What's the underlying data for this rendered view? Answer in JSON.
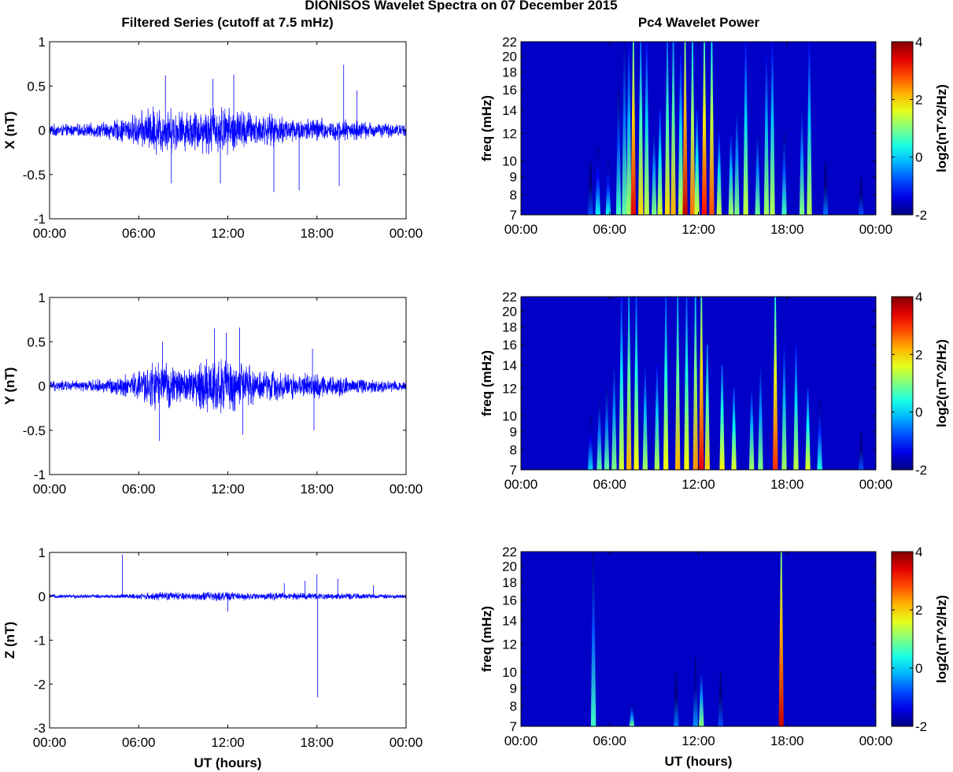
{
  "figure": {
    "title": "DIONISOS Wavelet Spectra on 07 December 2015",
    "left_column_title": "Filtered Series (cutoff at 7.5 mHz)",
    "right_column_title": "Pc4 Wavelet Power",
    "x_axis_label": "UT (hours)"
  },
  "chart_data": [
    {
      "type": "line",
      "name": "series-x",
      "title": "",
      "xlabel": "",
      "ylabel": "X (nT)",
      "color": "#0000ff",
      "xlim_hours": [
        0,
        24
      ],
      "ylim": [
        -1,
        1
      ],
      "x_ticks": [
        "00:00",
        "06:00",
        "12:00",
        "18:00",
        "00:00"
      ],
      "y_ticks": [
        "-1",
        "-0.5",
        "0",
        "0.5",
        "1"
      ],
      "envelope_hours": [
        0,
        2,
        3,
        4,
        5,
        6,
        7,
        8,
        9,
        10,
        11,
        12,
        13,
        14,
        15,
        16,
        17,
        18,
        19,
        20,
        21,
        22,
        23,
        24
      ],
      "envelope_amplitude_nT": [
        0.08,
        0.08,
        0.09,
        0.12,
        0.16,
        0.22,
        0.32,
        0.3,
        0.25,
        0.28,
        0.32,
        0.3,
        0.27,
        0.22,
        0.2,
        0.18,
        0.15,
        0.17,
        0.13,
        0.14,
        0.12,
        0.1,
        0.09,
        0.08
      ],
      "spikes": [
        {
          "hour": 7.8,
          "value": 0.62
        },
        {
          "hour": 8.2,
          "value": -0.6
        },
        {
          "hour": 11.0,
          "value": 0.58
        },
        {
          "hour": 11.5,
          "value": -0.6
        },
        {
          "hour": 12.4,
          "value": 0.63
        },
        {
          "hour": 15.1,
          "value": -0.7
        },
        {
          "hour": 16.8,
          "value": -0.68
        },
        {
          "hour": 19.5,
          "value": -0.63
        },
        {
          "hour": 19.8,
          "value": 0.74
        },
        {
          "hour": 20.7,
          "value": 0.45
        }
      ]
    },
    {
      "type": "line",
      "name": "series-y",
      "title": "",
      "xlabel": "",
      "ylabel": "Y (nT)",
      "color": "#0000ff",
      "xlim_hours": [
        0,
        24
      ],
      "ylim": [
        -1,
        1
      ],
      "x_ticks": [
        "00:00",
        "06:00",
        "12:00",
        "18:00",
        "00:00"
      ],
      "y_ticks": [
        "-1",
        "-0.5",
        "0",
        "0.5",
        "1"
      ],
      "envelope_hours": [
        0,
        2,
        3,
        4,
        5,
        6,
        7,
        8,
        9,
        10,
        11,
        12,
        13,
        14,
        15,
        16,
        17,
        18,
        19,
        20,
        21,
        22,
        23,
        24
      ],
      "envelope_amplitude_nT": [
        0.07,
        0.07,
        0.08,
        0.1,
        0.14,
        0.2,
        0.32,
        0.28,
        0.22,
        0.3,
        0.4,
        0.36,
        0.3,
        0.22,
        0.2,
        0.18,
        0.16,
        0.18,
        0.14,
        0.12,
        0.1,
        0.09,
        0.08,
        0.07
      ],
      "spikes": [
        {
          "hour": 7.4,
          "value": -0.62
        },
        {
          "hour": 7.6,
          "value": 0.5
        },
        {
          "hour": 11.1,
          "value": 0.65
        },
        {
          "hour": 11.9,
          "value": 0.6
        },
        {
          "hour": 12.8,
          "value": 0.66
        },
        {
          "hour": 13.0,
          "value": -0.55
        },
        {
          "hour": 17.7,
          "value": 0.42
        },
        {
          "hour": 17.8,
          "value": -0.5
        }
      ]
    },
    {
      "type": "line",
      "name": "series-z",
      "title": "",
      "xlabel": "UT (hours)",
      "ylabel": "Z (nT)",
      "color": "#0000ff",
      "xlim_hours": [
        0,
        24
      ],
      "ylim": [
        -3,
        1
      ],
      "x_ticks": [
        "00:00",
        "06:00",
        "12:00",
        "18:00",
        "00:00"
      ],
      "y_ticks": [
        "-3",
        "-2",
        "-1",
        "0",
        "1"
      ],
      "envelope_hours": [
        0,
        3,
        5,
        6,
        7,
        8,
        9,
        10,
        11,
        12,
        13,
        14,
        15,
        16,
        17,
        18,
        19,
        20,
        21,
        22,
        24
      ],
      "envelope_amplitude_nT": [
        0.05,
        0.05,
        0.06,
        0.08,
        0.1,
        0.12,
        0.1,
        0.11,
        0.13,
        0.12,
        0.1,
        0.09,
        0.1,
        0.09,
        0.1,
        0.09,
        0.08,
        0.08,
        0.07,
        0.06,
        0.05
      ],
      "spikes": [
        {
          "hour": 4.9,
          "value": 0.95
        },
        {
          "hour": 12.0,
          "value": -0.35
        },
        {
          "hour": 15.8,
          "value": 0.3
        },
        {
          "hour": 17.2,
          "value": 0.35
        },
        {
          "hour": 18.0,
          "value": 0.5
        },
        {
          "hour": 18.05,
          "value": -2.3
        },
        {
          "hour": 19.4,
          "value": 0.4
        },
        {
          "hour": 21.8,
          "value": 0.25
        }
      ]
    },
    {
      "type": "heatmap",
      "name": "wavelet-x",
      "title": "",
      "xlabel": "",
      "ylabel": "freq (mHz)",
      "colorbar_label": "log2(nT^2/Hz)",
      "xlim_hours": [
        0,
        24
      ],
      "ylim_mHz": [
        7,
        22
      ],
      "x_ticks": [
        "00:00",
        "06:00",
        "12:00",
        "18:00",
        "00:00"
      ],
      "y_ticks": [
        "7",
        "8",
        "9",
        "10",
        "12",
        "14",
        "16",
        "18",
        "20",
        "22"
      ],
      "clim": [
        -2,
        4
      ],
      "colorbar_ticks": [
        "-2",
        "0",
        "2",
        "4"
      ],
      "bursts": [
        {
          "hour": 4.7,
          "power": -0.8,
          "top_mHz": 10
        },
        {
          "hour": 5.2,
          "power": 0.2,
          "top_mHz": 11
        },
        {
          "hour": 5.9,
          "power": 0.3,
          "top_mHz": 10
        },
        {
          "hour": 6.6,
          "power": 0.6,
          "top_mHz": 16
        },
        {
          "hour": 7.0,
          "power": 0.8,
          "top_mHz": 22
        },
        {
          "hour": 7.3,
          "power": 1.2,
          "top_mHz": 22
        },
        {
          "hour": 7.6,
          "power": 3.4,
          "top_mHz": 22
        },
        {
          "hour": 8.1,
          "power": 2.0,
          "top_mHz": 22
        },
        {
          "hour": 8.5,
          "power": 1.4,
          "top_mHz": 22
        },
        {
          "hour": 9.0,
          "power": 1.0,
          "top_mHz": 12
        },
        {
          "hour": 9.4,
          "power": 1.5,
          "top_mHz": 14
        },
        {
          "hour": 9.9,
          "power": 2.0,
          "top_mHz": 22
        },
        {
          "hour": 10.3,
          "power": 2.2,
          "top_mHz": 22
        },
        {
          "hour": 10.8,
          "power": 1.4,
          "top_mHz": 20
        },
        {
          "hour": 11.1,
          "power": 3.6,
          "top_mHz": 22
        },
        {
          "hour": 11.6,
          "power": 2.6,
          "top_mHz": 22
        },
        {
          "hour": 11.9,
          "power": 1.5,
          "top_mHz": 14
        },
        {
          "hour": 12.4,
          "power": 3.2,
          "top_mHz": 22
        },
        {
          "hour": 12.9,
          "power": 2.8,
          "top_mHz": 22
        },
        {
          "hour": 13.4,
          "power": 1.4,
          "top_mHz": 12
        },
        {
          "hour": 14.2,
          "power": 1.2,
          "top_mHz": 12
        },
        {
          "hour": 14.6,
          "power": 1.0,
          "top_mHz": 14
        },
        {
          "hour": 15.2,
          "power": 1.4,
          "top_mHz": 22
        },
        {
          "hour": 16.0,
          "power": 0.9,
          "top_mHz": 12
        },
        {
          "hour": 16.6,
          "power": 1.2,
          "top_mHz": 20
        },
        {
          "hour": 17.0,
          "power": 1.3,
          "top_mHz": 22
        },
        {
          "hour": 17.8,
          "power": 0.6,
          "top_mHz": 12
        },
        {
          "hour": 19.0,
          "power": 1.0,
          "top_mHz": 14
        },
        {
          "hour": 19.5,
          "power": 1.3,
          "top_mHz": 22
        },
        {
          "hour": 20.6,
          "power": -0.6,
          "top_mHz": 10
        },
        {
          "hour": 23.0,
          "power": -0.8,
          "top_mHz": 9
        }
      ]
    },
    {
      "type": "heatmap",
      "name": "wavelet-y",
      "title": "",
      "xlabel": "",
      "ylabel": "freq (mHz)",
      "colorbar_label": "log2(nT^2/Hz)",
      "xlim_hours": [
        0,
        24
      ],
      "ylim_mHz": [
        7,
        22
      ],
      "x_ticks": [
        "00:00",
        "06:00",
        "12:00",
        "18:00",
        "00:00"
      ],
      "y_ticks": [
        "7",
        "8",
        "9",
        "10",
        "12",
        "14",
        "16",
        "18",
        "20",
        "22"
      ],
      "clim": [
        -2,
        4
      ],
      "colorbar_ticks": [
        "-2",
        "0",
        "2",
        "4"
      ],
      "bursts": [
        {
          "hour": 4.7,
          "power": 0.0,
          "top_mHz": 10
        },
        {
          "hour": 5.3,
          "power": 0.8,
          "top_mHz": 11
        },
        {
          "hour": 5.8,
          "power": 0.8,
          "top_mHz": 12
        },
        {
          "hour": 6.3,
          "power": 1.0,
          "top_mHz": 14
        },
        {
          "hour": 6.8,
          "power": 1.5,
          "top_mHz": 22
        },
        {
          "hour": 7.3,
          "power": 2.2,
          "top_mHz": 22
        },
        {
          "hour": 7.8,
          "power": 1.8,
          "top_mHz": 22
        },
        {
          "hour": 8.4,
          "power": 1.2,
          "top_mHz": 14
        },
        {
          "hour": 9.2,
          "power": 1.3,
          "top_mHz": 14
        },
        {
          "hour": 9.8,
          "power": 1.8,
          "top_mHz": 22
        },
        {
          "hour": 10.6,
          "power": 2.2,
          "top_mHz": 22
        },
        {
          "hour": 11.2,
          "power": 1.8,
          "top_mHz": 22
        },
        {
          "hour": 11.8,
          "power": 2.4,
          "top_mHz": 22
        },
        {
          "hour": 12.2,
          "power": 3.4,
          "top_mHz": 22
        },
        {
          "hour": 12.6,
          "power": 2.0,
          "top_mHz": 16
        },
        {
          "hour": 13.6,
          "power": 1.8,
          "top_mHz": 14
        },
        {
          "hour": 14.4,
          "power": 1.6,
          "top_mHz": 12
        },
        {
          "hour": 15.6,
          "power": 1.2,
          "top_mHz": 12
        },
        {
          "hour": 16.2,
          "power": 1.0,
          "top_mHz": 14
        },
        {
          "hour": 17.2,
          "power": 3.0,
          "top_mHz": 22
        },
        {
          "hour": 17.8,
          "power": 1.2,
          "top_mHz": 16
        },
        {
          "hour": 18.6,
          "power": 1.4,
          "top_mHz": 16
        },
        {
          "hour": 19.4,
          "power": 1.6,
          "top_mHz": 12
        },
        {
          "hour": 20.2,
          "power": 0.4,
          "top_mHz": 11
        },
        {
          "hour": 23.0,
          "power": -0.8,
          "top_mHz": 9
        }
      ]
    },
    {
      "type": "heatmap",
      "name": "wavelet-z",
      "title": "",
      "xlabel": "UT (hours)",
      "ylabel": "freq (mHz)",
      "colorbar_label": "log2(nT^2/Hz)",
      "xlim_hours": [
        0,
        24
      ],
      "ylim_mHz": [
        7,
        22
      ],
      "x_ticks": [
        "00:00",
        "06:00",
        "12:00",
        "18:00",
        "00:00"
      ],
      "y_ticks": [
        "7",
        "8",
        "9",
        "10",
        "12",
        "14",
        "16",
        "18",
        "20",
        "22"
      ],
      "clim": [
        -2,
        4
      ],
      "colorbar_ticks": [
        "-2",
        "0",
        "2",
        "4"
      ],
      "bursts": [
        {
          "hour": 4.9,
          "power": 0.6,
          "top_mHz": 22
        },
        {
          "hour": 7.5,
          "power": 0.8,
          "top_mHz": 8
        },
        {
          "hour": 10.5,
          "power": -0.6,
          "top_mHz": 10
        },
        {
          "hour": 11.8,
          "power": -0.4,
          "top_mHz": 11
        },
        {
          "hour": 12.2,
          "power": 1.0,
          "top_mHz": 10
        },
        {
          "hour": 13.5,
          "power": -0.8,
          "top_mHz": 10
        },
        {
          "hour": 17.6,
          "power": 3.6,
          "top_mHz": 22
        }
      ]
    }
  ]
}
